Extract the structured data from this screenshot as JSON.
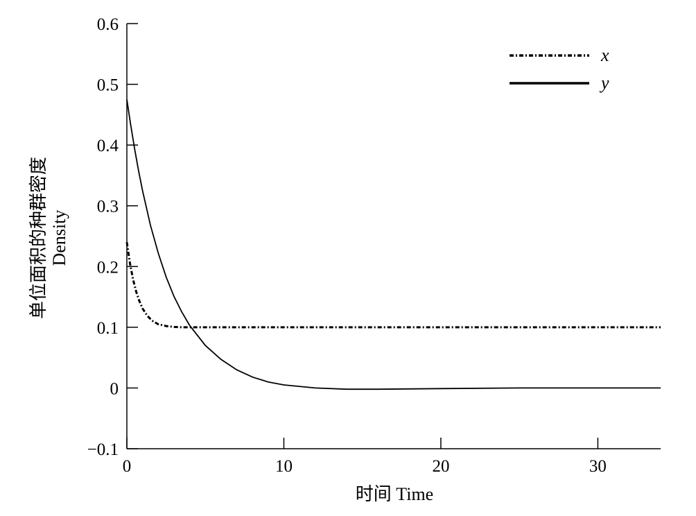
{
  "chart_data": {
    "type": "line",
    "xlabel": "时间 Time",
    "ylabel_zh": "单位面积的种群密度",
    "ylabel_en": "Density",
    "xlim": [
      0,
      34
    ],
    "ylim": [
      -0.1,
      0.6
    ],
    "x_ticks": [
      0,
      10,
      20,
      30
    ],
    "x_tick_labels": [
      "0",
      "10",
      "20",
      "30"
    ],
    "y_ticks": [
      -0.1,
      0,
      0.1,
      0.2,
      0.3,
      0.4,
      0.5,
      0.6
    ],
    "y_tick_labels": [
      "−0.1",
      "0",
      "0.1",
      "0.2",
      "0.3",
      "0.4",
      "0.5",
      "0.6"
    ],
    "grid": false,
    "legend_position": "top-right",
    "series": [
      {
        "name": "x",
        "style": "dash-dot",
        "color": "#000000",
        "x": [
          0,
          0.2,
          0.4,
          0.6,
          0.8,
          1.0,
          1.3,
          1.6,
          2.0,
          2.5,
          3.0,
          3.5,
          4.0,
          5.0,
          6.0,
          8.0,
          10.0,
          15.0,
          20.0,
          25.0,
          30.0,
          34.0
        ],
        "y": [
          0.24,
          0.205,
          0.178,
          0.158,
          0.143,
          0.131,
          0.119,
          0.111,
          0.105,
          0.102,
          0.1005,
          0.1,
          0.1,
          0.1,
          0.1,
          0.1,
          0.1,
          0.1,
          0.1,
          0.1,
          0.1,
          0.1
        ]
      },
      {
        "name": "y",
        "style": "solid",
        "color": "#000000",
        "x": [
          0,
          0.25,
          0.5,
          0.75,
          1.0,
          1.5,
          2.0,
          2.5,
          3.0,
          3.5,
          4.0,
          5.0,
          6.0,
          7.0,
          8.0,
          9.0,
          10.0,
          12.0,
          14.0,
          16.0,
          20.0,
          25.0,
          30.0,
          34.0
        ],
        "y": [
          0.475,
          0.432,
          0.393,
          0.357,
          0.325,
          0.268,
          0.222,
          0.183,
          0.151,
          0.125,
          0.103,
          0.07,
          0.047,
          0.03,
          0.018,
          0.01,
          0.005,
          0.0,
          -0.002,
          -0.002,
          -0.001,
          0.0,
          0.0,
          0.0
        ]
      }
    ]
  }
}
